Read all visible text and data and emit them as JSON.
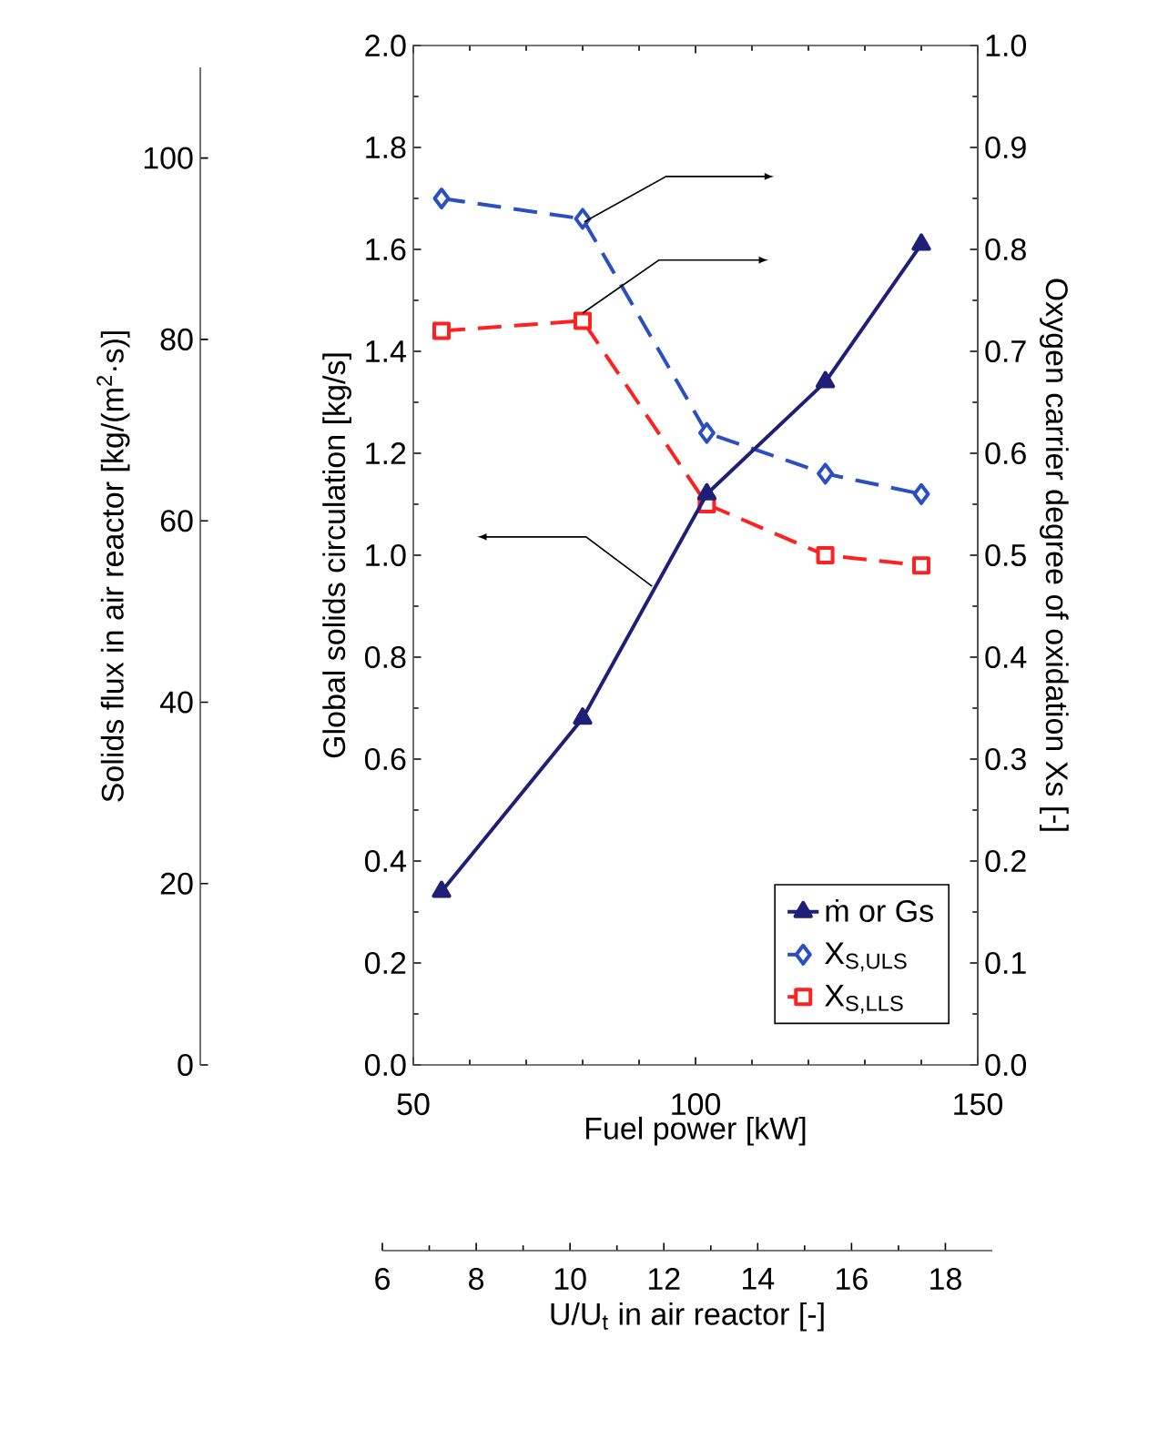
{
  "chart_data": {
    "type": "line",
    "xlabel": "Fuel power [kW]",
    "ylabel": "Global solids circulation [kg/s]",
    "y2label": "Oxygen carrier degree of oxidation Xs [-]",
    "y3label": "Solids flux in air reactor [kg/(m$^{2}$·s)]",
    "x2label": "U/U$_{t}$ in air reactor [-]",
    "xlim": [
      50,
      150
    ],
    "xticks": [
      50,
      100,
      150
    ],
    "ylim": [
      0,
      2
    ],
    "yticks": [
      {
        "value": 0,
        "label": "0.0"
      },
      0.2,
      0.4,
      0.6,
      0.8,
      {
        "value": 1,
        "label": "1.0"
      },
      1.2,
      1.4,
      1.6,
      1.8,
      {
        "value": 2,
        "label": "2.0"
      }
    ],
    "y2lim": [
      0,
      1
    ],
    "y2ticks": [
      {
        "value": 0,
        "label": "0.0"
      },
      0.1,
      0.2,
      0.3,
      0.4,
      0.5,
      0.6,
      0.7,
      0.8,
      0.9,
      {
        "value": 1,
        "label": "1.0"
      }
    ],
    "y3lim": [
      0,
      110
    ],
    "y3ticks": [
      0,
      20,
      40,
      60,
      80,
      100
    ],
    "x2lim": [
      6,
      19
    ],
    "x2ticks": [
      6,
      8,
      10,
      12,
      14,
      16,
      18
    ],
    "legend": "bottom right",
    "series": [
      {
        "name": "ṁ or Gs",
        "color": "#1f1f78",
        "marker": "triangle",
        "line_style": "solid",
        "x": [
          55,
          80,
          102,
          123,
          140
        ],
        "values": [
          0.34,
          0.68,
          1.12,
          1.34,
          1.61
        ]
      },
      {
        "name": "X$_{S,ULS}$",
        "axis": "y2",
        "color": "#2a4fbf",
        "marker": "diamond",
        "line_style": "dashed",
        "x": [
          55,
          80,
          102,
          123,
          140
        ],
        "values": [
          0.85,
          0.83,
          0.62,
          0.58,
          0.56
        ]
      },
      {
        "name": "X$_{S,LLS}$",
        "axis": "y2",
        "color": "#ff2020",
        "marker": "square",
        "line_style": "dashed",
        "x": [
          55,
          80,
          102,
          123,
          140
        ],
        "values": [
          0.72,
          0.73,
          0.55,
          0.5,
          0.49
        ]
      }
    ]
  }
}
